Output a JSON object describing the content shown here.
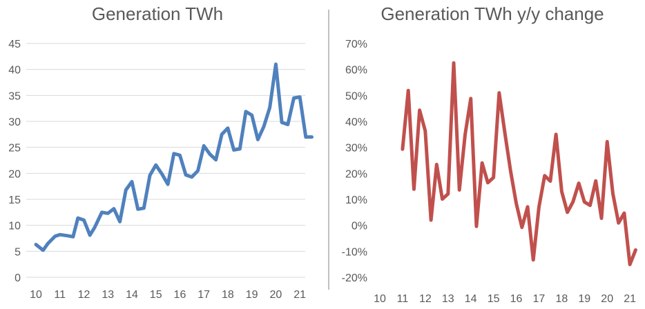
{
  "chart_data": [
    {
      "type": "line",
      "title": "Generation TWh",
      "xlabel": "",
      "ylabel": "",
      "ylim": [
        0,
        45
      ],
      "y_ticks": [
        "0",
        "5",
        "10",
        "15",
        "20",
        "25",
        "30",
        "35",
        "40",
        "45"
      ],
      "x_ticks": [
        "10",
        "11",
        "12",
        "13",
        "14",
        "15",
        "16",
        "17",
        "18",
        "19",
        "20",
        "21"
      ],
      "xlim": [
        10,
        21.6
      ],
      "grid": true,
      "color": "#4f81bd",
      "series": [
        {
          "x": [
            10.0,
            10.3,
            10.5,
            10.8,
            11.0,
            11.3,
            11.55,
            11.75,
            12.0,
            12.25,
            12.45,
            12.75,
            13.0,
            13.25,
            13.5,
            13.75,
            14.0,
            14.25,
            14.5,
            14.75,
            15.0,
            15.25,
            15.5,
            15.75,
            16.0,
            16.25,
            16.5,
            16.75,
            17.0,
            17.25,
            17.5,
            17.75,
            18.0,
            18.25,
            18.5,
            18.75,
            19.0,
            19.25,
            19.5,
            19.75,
            20.0,
            20.25,
            20.5,
            20.75,
            21.0,
            21.25,
            21.5
          ],
          "values": [
            6.3,
            5.2,
            6.5,
            7.9,
            8.2,
            8.0,
            7.8,
            11.4,
            11.0,
            8.1,
            9.6,
            12.5,
            12.3,
            13.2,
            10.7,
            16.8,
            18.4,
            13.1,
            13.3,
            19.6,
            21.6,
            19.9,
            17.9,
            23.8,
            23.5,
            19.7,
            19.3,
            20.5,
            25.3,
            23.7,
            22.6,
            27.5,
            28.7,
            24.5,
            24.7,
            31.9,
            31.2,
            26.5,
            29.0,
            32.7,
            41.0,
            29.8,
            29.4,
            34.5,
            34.7,
            27.0,
            27.0
          ]
        }
      ]
    },
    {
      "type": "line",
      "title": "Generation TWh y/y change",
      "xlabel": "",
      "ylabel": "",
      "ylim": [
        -20,
        70
      ],
      "y_ticks": [
        "-20%",
        "-10%",
        "0%",
        "10%",
        "20%",
        "30%",
        "40%",
        "50%",
        "60%",
        "70%"
      ],
      "x_ticks": [
        "10",
        "11",
        "12",
        "13",
        "14",
        "15",
        "16",
        "17",
        "18",
        "19",
        "20",
        "21"
      ],
      "xlim": [
        10,
        21.3
      ],
      "grid": false,
      "color": "#c0504d",
      "series": [
        {
          "x": [
            11.0,
            11.25,
            11.5,
            11.75,
            12.0,
            12.25,
            12.5,
            12.75,
            13.0,
            13.25,
            13.5,
            13.75,
            14.0,
            14.25,
            14.5,
            14.75,
            15.0,
            15.25,
            15.5,
            15.75,
            16.0,
            16.25,
            16.5,
            16.75,
            17.0,
            17.25,
            17.5,
            17.75,
            18.0,
            18.25,
            18.5,
            18.75,
            19.0,
            19.25,
            19.5,
            19.75,
            20.0,
            20.25,
            20.5,
            20.75,
            21.0,
            21.25
          ],
          "values": [
            29.3,
            51.9,
            13.9,
            44.3,
            36.3,
            2.0,
            23.4,
            10.1,
            12.1,
            62.5,
            13.6,
            34.9,
            48.8,
            -0.4,
            24.0,
            16.4,
            18.4,
            51.0,
            35.5,
            21.0,
            8.5,
            -0.8,
            7.1,
            -13.3,
            7.0,
            19.1,
            17.0,
            35.0,
            13.0,
            5.0,
            9.1,
            16.2,
            9.0,
            7.7,
            17.1,
            2.7,
            32.2,
            12.3,
            0.9,
            4.7,
            -15.1,
            -9.5
          ]
        }
      ]
    }
  ]
}
